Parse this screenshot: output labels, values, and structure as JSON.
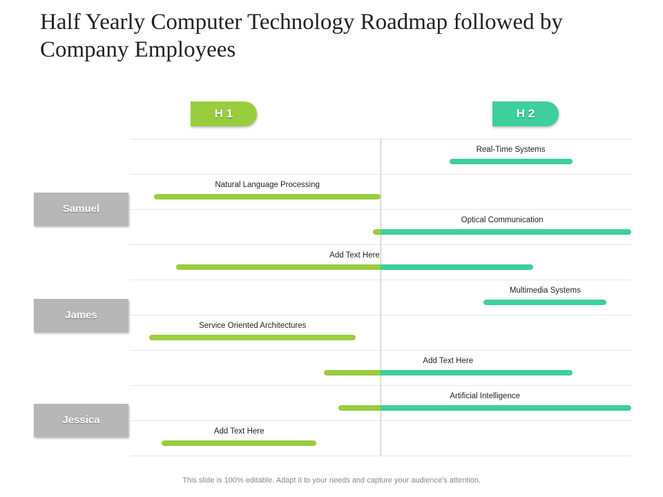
{
  "title": "Half Yearly Computer Technology Roadmap followed by Company Employees",
  "phases": [
    "H 1",
    "H 2"
  ],
  "people": [
    "Samuel",
    "James",
    "Jessica"
  ],
  "colors": {
    "h1": "#9acd3e",
    "h2": "#3ecf9c",
    "person": "#b7b7b7"
  },
  "tasks": [
    {
      "label": "Real-Time Systems",
      "start": 0.63,
      "end": 0.88
    },
    {
      "label": "Natural Language Processing",
      "start": 0.03,
      "end": 0.49
    },
    {
      "label": "Optical Communication",
      "start": 0.475,
      "end": 1.0
    },
    {
      "label": "Add Text Here",
      "start": 0.075,
      "end": 0.8
    },
    {
      "label": "Multimedia Systems",
      "start": 0.7,
      "end": 0.95
    },
    {
      "label": "Service Oriented Architectures",
      "start": 0.02,
      "end": 0.44
    },
    {
      "label": "Add Text Here",
      "start": 0.375,
      "end": 0.88
    },
    {
      "label": "Artificial Intelligence",
      "start": 0.405,
      "end": 1.0
    },
    {
      "label": "Add Text Here",
      "start": 0.045,
      "end": 0.36
    }
  ],
  "footer": "This slide is 100% editable. Adapt it to your needs and capture your audience's attention."
}
